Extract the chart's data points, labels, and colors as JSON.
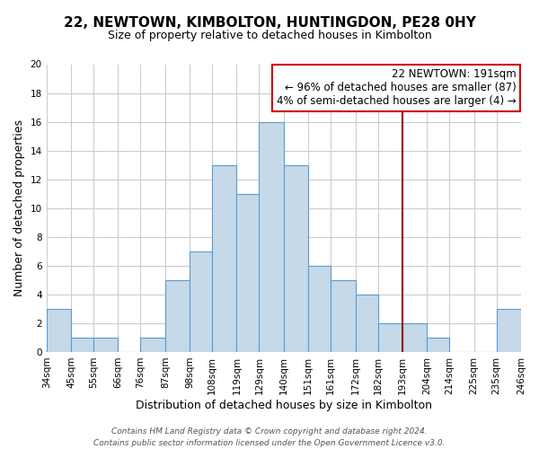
{
  "title": "22, NEWTOWN, KIMBOLTON, HUNTINGDON, PE28 0HY",
  "subtitle": "Size of property relative to detached houses in Kimbolton",
  "xlabel": "Distribution of detached houses by size in Kimbolton",
  "ylabel": "Number of detached properties",
  "bar_edges": [
    34,
    45,
    55,
    66,
    76,
    87,
    98,
    108,
    119,
    129,
    140,
    151,
    161,
    172,
    182,
    193,
    204,
    214,
    225,
    235,
    246
  ],
  "bar_heights": [
    3,
    1,
    1,
    0,
    1,
    5,
    7,
    13,
    11,
    16,
    13,
    6,
    5,
    4,
    2,
    2,
    1,
    0,
    0,
    3
  ],
  "bar_color": "#c5d9e8",
  "bar_edge_color": "#5b9bd5",
  "vline_x": 193,
  "vline_color": "#990000",
  "ylim": [
    0,
    20
  ],
  "yticks": [
    0,
    2,
    4,
    6,
    8,
    10,
    12,
    14,
    16,
    18,
    20
  ],
  "annotation_title": "22 NEWTOWN: 191sqm",
  "annotation_line1": "← 96% of detached houses are smaller (87)",
  "annotation_line2": "4% of semi-detached houses are larger (4) →",
  "annotation_box_color": "#ffffff",
  "annotation_box_edge": "#cc0000",
  "footer_line1": "Contains HM Land Registry data © Crown copyright and database right 2024.",
  "footer_line2": "Contains public sector information licensed under the Open Government Licence v3.0.",
  "tick_labels": [
    "34sqm",
    "45sqm",
    "55sqm",
    "66sqm",
    "76sqm",
    "87sqm",
    "98sqm",
    "108sqm",
    "119sqm",
    "129sqm",
    "140sqm",
    "151sqm",
    "161sqm",
    "172sqm",
    "182sqm",
    "193sqm",
    "204sqm",
    "214sqm",
    "225sqm",
    "235sqm",
    "246sqm"
  ],
  "background_color": "#ffffff",
  "grid_color": "#cccccc",
  "title_fontsize": 11,
  "subtitle_fontsize": 9,
  "axis_label_fontsize": 9,
  "tick_fontsize": 7.5,
  "annot_fontsize": 8.5,
  "footer_fontsize": 6.5
}
